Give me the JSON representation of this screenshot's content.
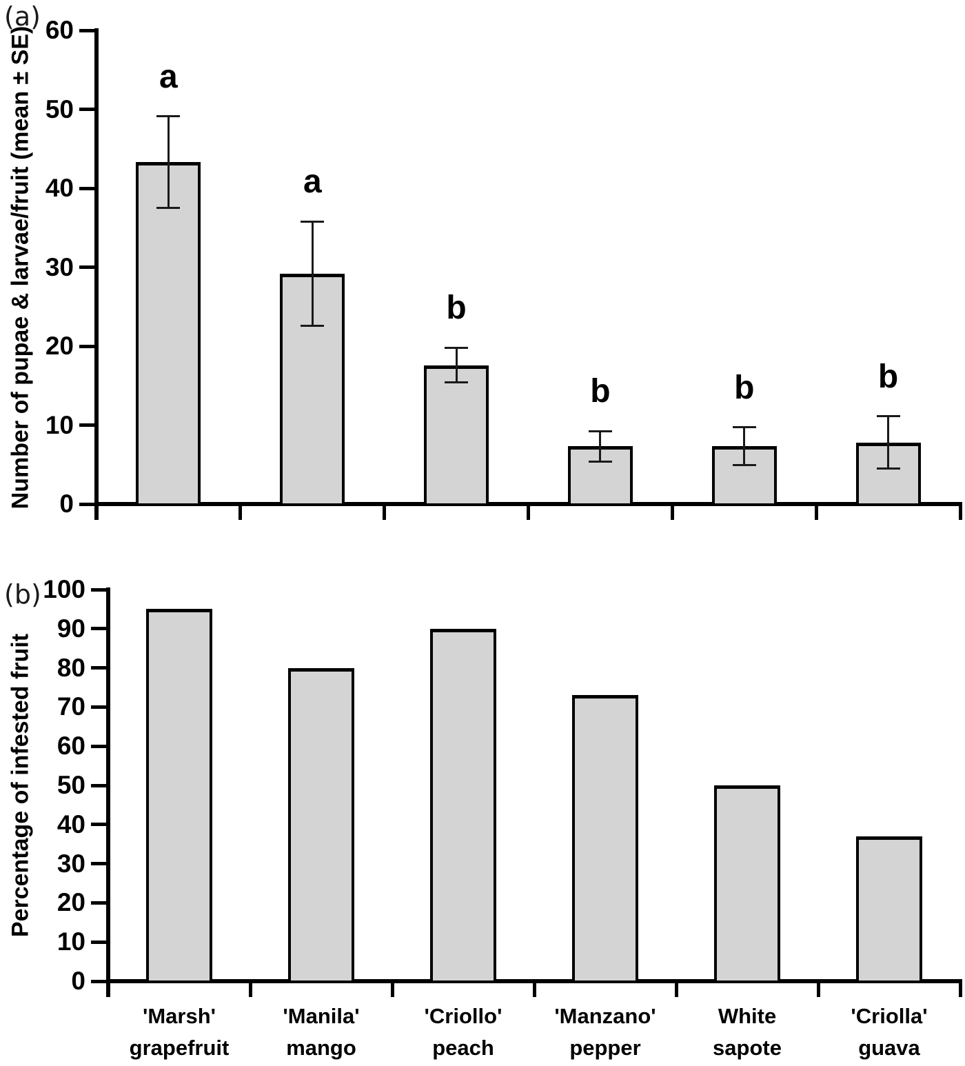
{
  "figure": {
    "panel_a_label": "(a)",
    "panel_b_label": "(b)",
    "bar_fill_color": "#d4d4d4",
    "bar_border_color": "#000000",
    "text_color": "#000000",
    "background_color": "#ffffff"
  },
  "categories": [
    {
      "full": "'Marsh' grapefruit",
      "line1": "'Marsh'",
      "line2": "grapefruit"
    },
    {
      "full": "'Manila' mango",
      "line1": "'Manila'",
      "line2": "mango"
    },
    {
      "full": "'Criollo' peach",
      "line1": "'Criollo'",
      "line2": "peach"
    },
    {
      "full": "'Manzano' pepper",
      "line1": "'Manzano'",
      "line2": "pepper"
    },
    {
      "full": "White sapote",
      "line1": "White",
      "line2": "sapote"
    },
    {
      "full": "'Criolla' guava",
      "line1": "'Criolla'",
      "line2": "guava"
    }
  ],
  "chart_data": [
    {
      "id": "panel_a",
      "type": "bar",
      "panel_label": "(a)",
      "title": "",
      "xlabel": "",
      "ylabel": "Number of pupae & larvae/fruit (mean ± SE)",
      "ylim": [
        0,
        60
      ],
      "ytick_step": 10,
      "ytick_labels": [
        "0",
        "10",
        "20",
        "30",
        "40",
        "50",
        "60"
      ],
      "grid": false,
      "legend": "none",
      "categories": [
        "'Marsh' grapefruit",
        "'Manila' mango",
        "'Criollo' peach",
        "'Manzano' pepper",
        "White sapote",
        "'Criolla' guava"
      ],
      "values": [
        43.3,
        29.2,
        17.6,
        7.3,
        7.3,
        7.8
      ],
      "error_se": [
        5.8,
        6.6,
        2.2,
        1.9,
        2.4,
        3.3
      ],
      "sig_letters": [
        "a",
        "a",
        "b",
        "b",
        "b",
        "b"
      ],
      "show_category_labels": false
    },
    {
      "id": "panel_b",
      "type": "bar",
      "panel_label": "(b)",
      "title": "",
      "xlabel": "",
      "ylabel": "Percentage of infested fruit",
      "ylim": [
        0,
        100
      ],
      "ytick_step": 10,
      "ytick_labels": [
        "0",
        "10",
        "20",
        "30",
        "40",
        "50",
        "60",
        "70",
        "80",
        "90",
        "100"
      ],
      "grid": false,
      "legend": "none",
      "categories": [
        "'Marsh' grapefruit",
        "'Manila' mango",
        "'Criollo' peach",
        "'Manzano' pepper",
        "White sapote",
        "'Criolla' guava"
      ],
      "values": [
        95,
        80,
        90,
        73,
        50,
        37
      ],
      "error_se": null,
      "sig_letters": null,
      "show_category_labels": true
    }
  ]
}
